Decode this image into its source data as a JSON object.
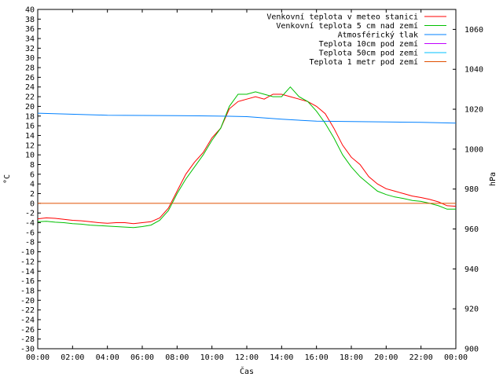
{
  "chart_data": {
    "type": "line",
    "xlabel": "Čas",
    "ylabel": "°C",
    "y2label": "hPa",
    "grid": false,
    "legend_position": "top-right",
    "x_ticks": [
      "00:00",
      "02:00",
      "04:00",
      "06:00",
      "08:00",
      "10:00",
      "12:00",
      "14:00",
      "16:00",
      "18:00",
      "20:00",
      "22:00",
      "00:00"
    ],
    "x_range_hours": [
      0,
      24
    ],
    "y_left": {
      "min": -30,
      "max": 40,
      "step": 2
    },
    "y_right": {
      "min": 900,
      "max": 1070,
      "step": 20,
      "ticks": [
        900,
        920,
        940,
        960,
        980,
        1000,
        1020,
        1040,
        1060
      ]
    },
    "colors": {
      "venkovni": "#ff0000",
      "zem5cm": "#00c000",
      "tlak": "#0080ff",
      "p10cm": "#c000ff",
      "p50cm": "#00c0ff",
      "p1m": "#e05000"
    },
    "series": [
      {
        "name": "Venkovní teplota v meteo stanici",
        "key": "venkovni",
        "axis": "left",
        "x": [
          0,
          0.5,
          1,
          1.5,
          2,
          2.5,
          3,
          3.5,
          4,
          4.5,
          5,
          5.5,
          6,
          6.5,
          7,
          7.5,
          8,
          8.5,
          9,
          9.5,
          10,
          10.5,
          11,
          11.5,
          12,
          12.5,
          13,
          13.5,
          14,
          14.5,
          15,
          15.5,
          16,
          16.5,
          17,
          17.5,
          18,
          18.5,
          19,
          19.5,
          20,
          20.5,
          21,
          21.5,
          22,
          22.5,
          23,
          23.5,
          24
        ],
        "values": [
          -3.2,
          -3.0,
          -3.1,
          -3.3,
          -3.5,
          -3.6,
          -3.8,
          -4.0,
          -4.1,
          -4.0,
          -4.0,
          -4.2,
          -4.0,
          -3.8,
          -3.0,
          -1.0,
          2.5,
          6.0,
          8.5,
          10.5,
          13.5,
          15.5,
          19.5,
          21.0,
          21.5,
          22.0,
          21.5,
          22.5,
          22.5,
          22.0,
          21.5,
          21.0,
          20.0,
          18.5,
          15.5,
          12.0,
          9.5,
          8.0,
          5.5,
          4.0,
          3.0,
          2.5,
          2.0,
          1.5,
          1.2,
          0.8,
          0.3,
          -0.5,
          -0.6
        ]
      },
      {
        "name": "Venkovní teplota 5 cm nad zemí",
        "key": "zem5cm",
        "axis": "left",
        "x": [
          0,
          0.5,
          1,
          1.5,
          2,
          2.5,
          3,
          3.5,
          4,
          4.5,
          5,
          5.5,
          6,
          6.5,
          7,
          7.5,
          8,
          8.5,
          9,
          9.5,
          10,
          10.5,
          11,
          11.5,
          12,
          12.5,
          13,
          13.5,
          14,
          14.5,
          15,
          15.5,
          16,
          16.5,
          17,
          17.5,
          18,
          18.5,
          19,
          19.5,
          20,
          20.5,
          21,
          21.5,
          22,
          22.5,
          23,
          23.5,
          24
        ],
        "values": [
          -3.8,
          -3.7,
          -3.9,
          -4.0,
          -4.2,
          -4.3,
          -4.5,
          -4.6,
          -4.7,
          -4.8,
          -4.9,
          -5.0,
          -4.8,
          -4.5,
          -3.5,
          -1.5,
          2.0,
          5.0,
          7.5,
          10.0,
          13.0,
          15.5,
          20.0,
          22.5,
          22.5,
          23.0,
          22.5,
          22.0,
          22.0,
          24.0,
          22.0,
          21.0,
          19.0,
          16.5,
          13.5,
          10.0,
          7.5,
          5.5,
          4.0,
          2.5,
          1.8,
          1.3,
          1.0,
          0.6,
          0.4,
          0.0,
          -0.5,
          -1.2,
          -1.2
        ]
      },
      {
        "name": "Atmosférický tlak",
        "key": "tlak",
        "axis": "right",
        "x": [
          0,
          4,
          8,
          11,
          12,
          14,
          16,
          18,
          20,
          22,
          24
        ],
        "values": [
          1018.0,
          1017.0,
          1016.8,
          1016.5,
          1016.3,
          1015.0,
          1014.0,
          1013.8,
          1013.6,
          1013.4,
          1013.0
        ]
      },
      {
        "name": "Teplota 10cm pod zemí",
        "key": "p10cm",
        "axis": "left",
        "x": [],
        "values": []
      },
      {
        "name": "Teplota 50cm pod zemí",
        "key": "p50cm",
        "axis": "left",
        "x": [],
        "values": []
      },
      {
        "name": "Teplota 1 metr pod zemí",
        "key": "p1m",
        "axis": "left",
        "x": [
          0,
          24
        ],
        "values": [
          0,
          0
        ]
      }
    ]
  }
}
